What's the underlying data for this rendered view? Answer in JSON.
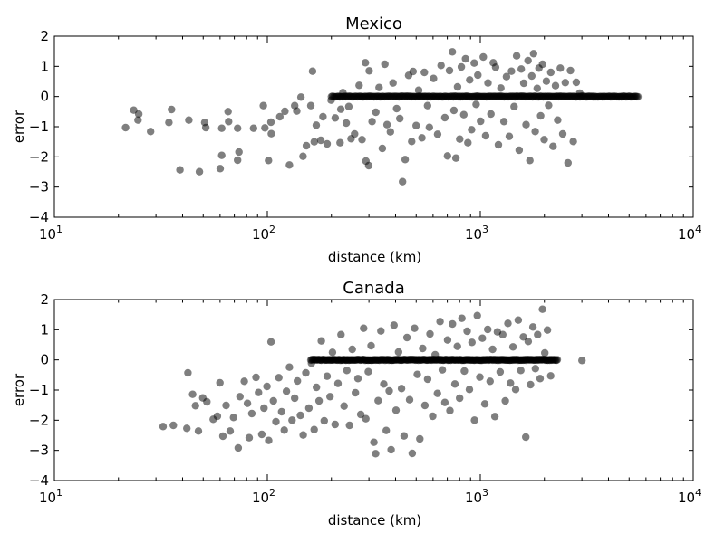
{
  "chart_data": [
    {
      "type": "scatter",
      "title": "Mexico",
      "xlabel": "distance (km)",
      "ylabel": "error",
      "xscale": "log",
      "xlim": [
        10,
        10000
      ],
      "ylim": [
        -4,
        2
      ],
      "xticks": [
        {
          "base": "10",
          "exp": "1",
          "value": 10
        },
        {
          "base": "10",
          "exp": "2",
          "value": 100
        },
        {
          "base": "10",
          "exp": "3",
          "value": 1000
        },
        {
          "base": "10",
          "exp": "4",
          "value": 10000
        }
      ],
      "yticks": [
        "2",
        "1",
        "0",
        "−1",
        "−2",
        "−3",
        "−4"
      ],
      "ytick_values": [
        2,
        1,
        0,
        -1,
        -2,
        -3,
        -4
      ],
      "grid": false,
      "marker_color": "#000000",
      "marker_alpha": 0.5,
      "points": [
        {
          "x": 21.6,
          "y": -1.03
        },
        {
          "x": 23.6,
          "y": -0.45
        },
        {
          "x": 24.7,
          "y": -0.78
        },
        {
          "x": 24.9,
          "y": -0.58
        },
        {
          "x": 28.3,
          "y": -1.16
        },
        {
          "x": 34.5,
          "y": -0.86
        },
        {
          "x": 35.5,
          "y": -0.43
        },
        {
          "x": 38.9,
          "y": -2.43
        },
        {
          "x": 42.8,
          "y": -0.78
        },
        {
          "x": 48.0,
          "y": -2.49
        },
        {
          "x": 50.8,
          "y": -0.86
        },
        {
          "x": 51.4,
          "y": -1.03
        },
        {
          "x": 60.1,
          "y": -2.39
        },
        {
          "x": 61.1,
          "y": -1.05
        },
        {
          "x": 61.1,
          "y": -1.95
        },
        {
          "x": 65.4,
          "y": -0.5
        },
        {
          "x": 65.8,
          "y": -0.83
        },
        {
          "x": 72.5,
          "y": -2.11
        },
        {
          "x": 73.6,
          "y": -1.84
        },
        {
          "x": 72.5,
          "y": -1.05
        },
        {
          "x": 86.2,
          "y": -1.05
        },
        {
          "x": 95.8,
          "y": -0.3
        },
        {
          "x": 97.4,
          "y": -1.04
        },
        {
          "x": 101.3,
          "y": -2.12
        },
        {
          "x": 104.0,
          "y": -0.85
        },
        {
          "x": 104.4,
          "y": -1.23
        },
        {
          "x": 114.5,
          "y": -0.67
        },
        {
          "x": 120.9,
          "y": -0.49
        },
        {
          "x": 127.0,
          "y": -2.27
        },
        {
          "x": 134.5,
          "y": -0.3
        },
        {
          "x": 137.5,
          "y": -0.48
        },
        {
          "x": 143.8,
          "y": -0.02
        },
        {
          "x": 147.1,
          "y": -1.98
        },
        {
          "x": 152.6,
          "y": -1.63
        },
        {
          "x": 160.0,
          "y": -0.3
        },
        {
          "x": 163.0,
          "y": 0.84
        },
        {
          "x": 166.1,
          "y": -1.5
        },
        {
          "x": 169.8,
          "y": -0.95
        },
        {
          "x": 178.2,
          "y": -1.45
        },
        {
          "x": 182.5,
          "y": -0.67
        },
        {
          "x": 190.9,
          "y": -1.57
        },
        {
          "x": 199.4,
          "y": -0.12
        },
        {
          "x": 208.3,
          "y": -0.71
        },
        {
          "x": 219.6,
          "y": -1.53
        },
        {
          "x": 221.4,
          "y": -0.42
        },
        {
          "x": 226.3,
          "y": 0.13
        },
        {
          "x": 234.7,
          "y": -0.88
        },
        {
          "x": 241.4,
          "y": -0.33
        },
        {
          "x": 247.4,
          "y": -1.4
        },
        {
          "x": 257.0,
          "y": -1.24
        },
        {
          "x": 269.7,
          "y": 0.37
        },
        {
          "x": 278.4,
          "y": -1.43
        },
        {
          "x": 288.7,
          "y": 1.12
        },
        {
          "x": 290.5,
          "y": -2.14
        },
        {
          "x": 299.3,
          "y": -2.29
        },
        {
          "x": 300.9,
          "y": 0.85
        },
        {
          "x": 310.4,
          "y": -0.83
        },
        {
          "x": 323.1,
          "y": -0.52
        },
        {
          "x": 334.8,
          "y": 0.3
        },
        {
          "x": 346.8,
          "y": -1.72
        },
        {
          "x": 356.5,
          "y": 1.07
        },
        {
          "x": 364.7,
          "y": -0.93
        },
        {
          "x": 378.2,
          "y": -1.17
        },
        {
          "x": 389.1,
          "y": 0.45
        },
        {
          "x": 404.6,
          "y": -0.4
        },
        {
          "x": 419.0,
          "y": -0.73
        },
        {
          "x": 431.4,
          "y": -2.82
        },
        {
          "x": 443.7,
          "y": -2.09
        },
        {
          "x": 460.7,
          "y": 0.7
        },
        {
          "x": 476.1,
          "y": -1.49
        },
        {
          "x": 483.2,
          "y": 0.83
        },
        {
          "x": 499.9,
          "y": -0.96
        },
        {
          "x": 513.8,
          "y": 0.21
        },
        {
          "x": 532.2,
          "y": -1.37
        },
        {
          "x": 546.5,
          "y": 0.8
        },
        {
          "x": 565.3,
          "y": -0.3
        },
        {
          "x": 576.7,
          "y": -1.02
        },
        {
          "x": 603.4,
          "y": 0.6
        },
        {
          "x": 630.1,
          "y": -1.25
        },
        {
          "x": 654.4,
          "y": 1.03
        },
        {
          "x": 682.0,
          "y": -0.7
        },
        {
          "x": 701.3,
          "y": -1.97
        },
        {
          "x": 716.5,
          "y": 0.86
        },
        {
          "x": 739.6,
          "y": 1.48
        },
        {
          "x": 752.1,
          "y": -0.46
        },
        {
          "x": 768.2,
          "y": -2.04
        },
        {
          "x": 781.8,
          "y": 0.32
        },
        {
          "x": 800.2,
          "y": -1.41
        },
        {
          "x": 814.9,
          "y": 0.98
        },
        {
          "x": 836.7,
          "y": -0.6
        },
        {
          "x": 852.3,
          "y": 1.25
        },
        {
          "x": 874.0,
          "y": -1.53
        },
        {
          "x": 891.5,
          "y": 0.55
        },
        {
          "x": 910.3,
          "y": -1.1
        },
        {
          "x": 936.3,
          "y": 1.11
        },
        {
          "x": 955.6,
          "y": -0.26
        },
        {
          "x": 974.0,
          "y": 0.71
        },
        {
          "x": 1003.2,
          "y": -0.82
        },
        {
          "x": 1032.7,
          "y": 1.31
        },
        {
          "x": 1059.3,
          "y": -1.3
        },
        {
          "x": 1086.4,
          "y": 0.45
        },
        {
          "x": 1121.1,
          "y": -0.58
        },
        {
          "x": 1150.6,
          "y": 1.12
        },
        {
          "x": 1180.2,
          "y": 0.97
        },
        {
          "x": 1216.6,
          "y": -1.6
        },
        {
          "x": 1249.4,
          "y": 0.28
        },
        {
          "x": 1291.1,
          "y": -0.83
        },
        {
          "x": 1327.5,
          "y": 0.66
        },
        {
          "x": 1368.4,
          "y": -1.32
        },
        {
          "x": 1401.5,
          "y": 0.84
        },
        {
          "x": 1441.1,
          "y": -0.33
        },
        {
          "x": 1481.7,
          "y": 1.35
        },
        {
          "x": 1522.6,
          "y": -1.78
        },
        {
          "x": 1556.6,
          "y": 0.91
        },
        {
          "x": 1600.5,
          "y": 0.44
        },
        {
          "x": 1640.4,
          "y": -0.93
        },
        {
          "x": 1675.7,
          "y": 1.19
        },
        {
          "x": 1709.7,
          "y": -2.12
        },
        {
          "x": 1745.1,
          "y": 0.68
        },
        {
          "x": 1778.9,
          "y": 1.42
        },
        {
          "x": 1811.0,
          "y": -1.16
        },
        {
          "x": 1850.2,
          "y": 0.27
        },
        {
          "x": 1884.9,
          "y": 0.94
        },
        {
          "x": 1921.2,
          "y": -0.64
        },
        {
          "x": 1959.7,
          "y": 1.07
        },
        {
          "x": 1995.3,
          "y": -1.43
        },
        {
          "x": 2043.7,
          "y": 0.51
        },
        {
          "x": 2094.4,
          "y": -0.29
        },
        {
          "x": 2143.8,
          "y": 0.8
        },
        {
          "x": 2196.3,
          "y": -1.65
        },
        {
          "x": 2256.1,
          "y": 0.36
        },
        {
          "x": 2308.7,
          "y": -0.78
        },
        {
          "x": 2375.5,
          "y": 0.94
        },
        {
          "x": 2438.5,
          "y": -1.24
        },
        {
          "x": 2508.0,
          "y": 0.46
        },
        {
          "x": 2581.2,
          "y": -2.2
        },
        {
          "x": 2651.2,
          "y": 0.86
        },
        {
          "x": 2731.5,
          "y": -1.49
        },
        {
          "x": 2822.3,
          "y": 0.47
        },
        {
          "x": 2930.0,
          "y": 0.11
        }
      ],
      "zero_band": {
        "from": 200,
        "to": 5500,
        "y": 0
      }
    },
    {
      "type": "scatter",
      "title": "Canada",
      "xlabel": "distance (km)",
      "ylabel": "error",
      "xscale": "log",
      "xlim": [
        10,
        10000
      ],
      "ylim": [
        -4,
        2
      ],
      "xticks": [
        {
          "base": "10",
          "exp": "1",
          "value": 10
        },
        {
          "base": "10",
          "exp": "2",
          "value": 100
        },
        {
          "base": "10",
          "exp": "3",
          "value": 1000
        },
        {
          "base": "10",
          "exp": "4",
          "value": 10000
        }
      ],
      "yticks": [
        "2",
        "1",
        "0",
        "−1",
        "−2",
        "−3",
        "−4"
      ],
      "ytick_values": [
        2,
        1,
        0,
        -1,
        -2,
        -3,
        -4
      ],
      "grid": false,
      "marker_color": "#000000",
      "marker_alpha": 0.5,
      "points": [
        {
          "x": 32.4,
          "y": -2.21
        },
        {
          "x": 36.2,
          "y": -2.17
        },
        {
          "x": 41.9,
          "y": -2.27
        },
        {
          "x": 42.4,
          "y": -0.43
        },
        {
          "x": 44.6,
          "y": -1.14
        },
        {
          "x": 46.0,
          "y": -1.52
        },
        {
          "x": 47.5,
          "y": -2.36
        },
        {
          "x": 49.8,
          "y": -1.26
        },
        {
          "x": 52.0,
          "y": -1.39
        },
        {
          "x": 55.7,
          "y": -1.97
        },
        {
          "x": 58.3,
          "y": -1.87
        },
        {
          "x": 59.9,
          "y": -0.76
        },
        {
          "x": 61.9,
          "y": -2.53
        },
        {
          "x": 64.0,
          "y": -1.51
        },
        {
          "x": 66.9,
          "y": -2.36
        },
        {
          "x": 69.4,
          "y": -1.91
        },
        {
          "x": 73.0,
          "y": -2.92
        },
        {
          "x": 74.4,
          "y": -1.22
        },
        {
          "x": 78.0,
          "y": -0.71
        },
        {
          "x": 80.7,
          "y": -1.44
        },
        {
          "x": 82.2,
          "y": -2.58
        },
        {
          "x": 84.6,
          "y": -1.78
        },
        {
          "x": 88.5,
          "y": -0.58
        },
        {
          "x": 90.9,
          "y": -1.08
        },
        {
          "x": 94.2,
          "y": -2.47
        },
        {
          "x": 96.4,
          "y": -1.6
        },
        {
          "x": 99.6,
          "y": -0.88
        },
        {
          "x": 101.5,
          "y": -2.67
        },
        {
          "x": 104.1,
          "y": 0.6
        },
        {
          "x": 106.8,
          "y": -1.36
        },
        {
          "x": 109.8,
          "y": -2.05
        },
        {
          "x": 113.2,
          "y": -0.59
        },
        {
          "x": 116.8,
          "y": -1.72
        },
        {
          "x": 120.1,
          "y": -2.33
        },
        {
          "x": 123.0,
          "y": -1.04
        },
        {
          "x": 127.0,
          "y": -0.24
        },
        {
          "x": 130.7,
          "y": -2.0
        },
        {
          "x": 134.5,
          "y": -1.27
        },
        {
          "x": 138.4,
          "y": -0.7
        },
        {
          "x": 143.0,
          "y": -1.84
        },
        {
          "x": 147.4,
          "y": -2.49
        },
        {
          "x": 151.6,
          "y": -0.43
        },
        {
          "x": 156.8,
          "y": -1.6
        },
        {
          "x": 161.1,
          "y": -0.11
        },
        {
          "x": 166.0,
          "y": -2.31
        },
        {
          "x": 170.1,
          "y": -0.91
        },
        {
          "x": 175.0,
          "y": -1.36
        },
        {
          "x": 179.3,
          "y": 0.63
        },
        {
          "x": 185.1,
          "y": -2.02
        },
        {
          "x": 190.9,
          "y": -0.54
        },
        {
          "x": 197.0,
          "y": -1.22
        },
        {
          "x": 202.3,
          "y": 0.25
        },
        {
          "x": 208.2,
          "y": -2.14
        },
        {
          "x": 214.8,
          "y": -0.78
        },
        {
          "x": 221.9,
          "y": 0.84
        },
        {
          "x": 229.3,
          "y": -1.53
        },
        {
          "x": 236.4,
          "y": -0.35
        },
        {
          "x": 243.3,
          "y": -2.17
        },
        {
          "x": 250.5,
          "y": 0.35
        },
        {
          "x": 259.2,
          "y": -1.09
        },
        {
          "x": 266.4,
          "y": -0.62
        },
        {
          "x": 274.5,
          "y": -1.81
        },
        {
          "x": 283.4,
          "y": 1.05
        },
        {
          "x": 290.2,
          "y": -1.95
        },
        {
          "x": 297.8,
          "y": -0.39
        },
        {
          "x": 307.1,
          "y": 0.47
        },
        {
          "x": 316.6,
          "y": -2.73
        },
        {
          "x": 322.5,
          "y": -3.11
        },
        {
          "x": 331.4,
          "y": -1.35
        },
        {
          "x": 341.2,
          "y": 0.96
        },
        {
          "x": 352.1,
          "y": -0.8
        },
        {
          "x": 361.6,
          "y": -2.34
        },
        {
          "x": 373.6,
          "y": -1.03
        },
        {
          "x": 381.3,
          "y": -2.98
        },
        {
          "x": 393.3,
          "y": 1.15
        },
        {
          "x": 402.1,
          "y": -1.67
        },
        {
          "x": 413.3,
          "y": 0.26
        },
        {
          "x": 426.8,
          "y": -0.95
        },
        {
          "x": 438.5,
          "y": -2.52
        },
        {
          "x": 452.5,
          "y": 0.74
        },
        {
          "x": 465.6,
          "y": -1.32
        },
        {
          "x": 478.9,
          "y": -3.1
        },
        {
          "x": 491.3,
          "y": 1.05
        },
        {
          "x": 506.1,
          "y": -0.48
        },
        {
          "x": 520.2,
          "y": -2.62
        },
        {
          "x": 536.2,
          "y": 0.38
        },
        {
          "x": 549.6,
          "y": -1.51
        },
        {
          "x": 566.1,
          "y": -0.64
        },
        {
          "x": 580.4,
          "y": 0.86
        },
        {
          "x": 597.8,
          "y": -1.87
        },
        {
          "x": 614.1,
          "y": 0.17
        },
        {
          "x": 628.9,
          "y": -1.11
        },
        {
          "x": 647.5,
          "y": 1.27
        },
        {
          "x": 663.1,
          "y": -0.33
        },
        {
          "x": 682.0,
          "y": -1.41
        },
        {
          "x": 701.8,
          "y": 0.66
        },
        {
          "x": 719.9,
          "y": -1.68
        },
        {
          "x": 740.1,
          "y": 1.19
        },
        {
          "x": 760.3,
          "y": -0.8
        },
        {
          "x": 780.3,
          "y": 0.45
        },
        {
          "x": 799.8,
          "y": -1.27
        },
        {
          "x": 820.0,
          "y": 1.38
        },
        {
          "x": 841.6,
          "y": -0.37
        },
        {
          "x": 867.3,
          "y": 0.95
        },
        {
          "x": 889.4,
          "y": -0.98
        },
        {
          "x": 914.1,
          "y": 0.58
        },
        {
          "x": 939.6,
          "y": -2.0
        },
        {
          "x": 968.2,
          "y": 1.47
        },
        {
          "x": 995.0,
          "y": -0.57
        },
        {
          "x": 1023.1,
          "y": 0.72
        },
        {
          "x": 1050.4,
          "y": -1.46
        },
        {
          "x": 1083.7,
          "y": 1.01
        },
        {
          "x": 1111.2,
          "y": -0.71
        },
        {
          "x": 1142.3,
          "y": 0.35
        },
        {
          "x": 1171.3,
          "y": -1.88
        },
        {
          "x": 1203.9,
          "y": 0.93
        },
        {
          "x": 1238.8,
          "y": -0.4
        },
        {
          "x": 1275.1,
          "y": 0.84
        },
        {
          "x": 1310.3,
          "y": -1.36
        },
        {
          "x": 1348.6,
          "y": 1.21
        },
        {
          "x": 1385.5,
          "y": -0.77
        },
        {
          "x": 1424.5,
          "y": 0.43
        },
        {
          "x": 1465.0,
          "y": -0.98
        },
        {
          "x": 1507.6,
          "y": 1.32
        },
        {
          "x": 1549.7,
          "y": -0.35
        },
        {
          "x": 1593.1,
          "y": 0.76
        },
        {
          "x": 1635.9,
          "y": -2.56
        },
        {
          "x": 1679.5,
          "y": 0.61
        },
        {
          "x": 1721.3,
          "y": -0.82
        },
        {
          "x": 1766.8,
          "y": 1.09
        },
        {
          "x": 1813.8,
          "y": -0.29
        },
        {
          "x": 1860.2,
          "y": 0.84
        },
        {
          "x": 1909.6,
          "y": -0.62
        },
        {
          "x": 1958.2,
          "y": 1.68
        },
        {
          "x": 2009.3,
          "y": 0.23
        },
        {
          "x": 2066.5,
          "y": 0.99
        },
        {
          "x": 2141.8,
          "y": -0.53
        },
        {
          "x": 3003.5,
          "y": -0.02
        }
      ],
      "zero_band": {
        "from": 160,
        "to": 2300,
        "y": 0
      }
    }
  ]
}
